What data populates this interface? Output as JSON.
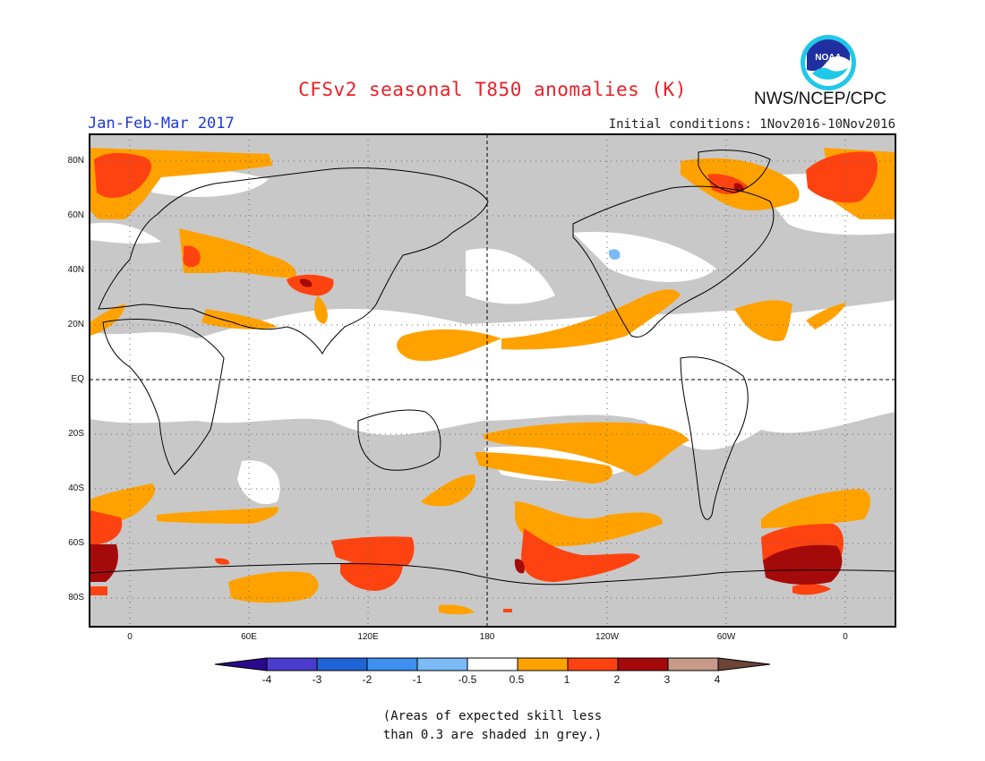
{
  "header": {
    "title": "CFSv2 seasonal T850 anomalies (K)",
    "period": "Jan-Feb-Mar 2017",
    "initial_conditions": "Initial conditions: 1Nov2016-10Nov2016",
    "agency": "NWS/NCEP/CPC",
    "logo_text": "NOAA"
  },
  "map": {
    "lat_labels": [
      "80N",
      "60N",
      "40N",
      "20N",
      "EQ",
      "20S",
      "40S",
      "60S",
      "80S"
    ],
    "lon_labels": [
      "0",
      "60E",
      "120E",
      "180",
      "120W",
      "60W",
      "0"
    ],
    "grey_meaning": "skill less than 0.3"
  },
  "colorbar": {
    "labels": [
      "-4",
      "-3",
      "-2",
      "-1",
      "-0.5",
      "0.5",
      "1",
      "2",
      "3",
      "4"
    ],
    "colors": [
      "#2a0a8c",
      "#4a3ccc",
      "#1f64d6",
      "#3d8ff0",
      "#79baf7",
      "#ffffff",
      "#ffa200",
      "#ff4310",
      "#a50a0a",
      "#c89a8a",
      "#6e4436"
    ]
  },
  "note": {
    "line1": "(Areas of expected skill less",
    "line2": "than 0.3 are shaded in grey.)"
  }
}
